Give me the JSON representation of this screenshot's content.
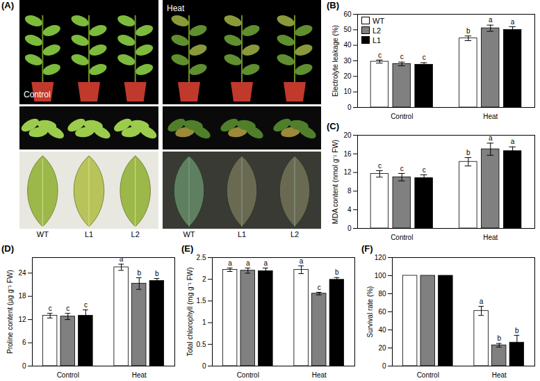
{
  "photo_panel": {
    "title": "(A)",
    "conditions": [
      "Control",
      "Heat"
    ],
    "lines": [
      "WT",
      "L1",
      "L2"
    ]
  },
  "chart_data": [
    {
      "type": "bar",
      "title": "(B)",
      "ylabel": "Electrolyte leakage (%)",
      "categories": [
        "Control",
        "Heat"
      ],
      "ylim": [
        0,
        60
      ],
      "yticks": [
        0,
        10,
        20,
        30,
        40,
        50,
        60
      ],
      "legend": "top-left",
      "series": [
        {
          "name": "WT",
          "color": "#ffffff",
          "values": [
            29.5,
            44.5
          ],
          "errors": [
            1.0,
            1.5
          ],
          "annotations": [
            "c",
            "b"
          ]
        },
        {
          "name": "L2",
          "color": "#808080",
          "values": [
            28.0,
            51.0
          ],
          "errors": [
            1.2,
            2.0
          ],
          "annotations": [
            "c",
            "a"
          ]
        },
        {
          "name": "L1",
          "color": "#000000",
          "values": [
            27.5,
            50.0
          ],
          "errors": [
            1.3,
            2.0
          ],
          "annotations": [
            "c",
            "a"
          ]
        }
      ]
    },
    {
      "type": "bar",
      "title": "(C)",
      "ylabel": "MDA content (nmol g⁻¹ FW)",
      "categories": [
        "Control",
        "Heat"
      ],
      "ylim": [
        0,
        20
      ],
      "yticks": [
        0,
        4,
        8,
        12,
        16,
        20
      ],
      "series": [
        {
          "name": "WT",
          "color": "#ffffff",
          "values": [
            11.7,
            14.3
          ],
          "errors": [
            0.7,
            0.9
          ],
          "annotations": [
            "c",
            "b"
          ]
        },
        {
          "name": "L2",
          "color": "#808080",
          "values": [
            11.0,
            17.0
          ],
          "errors": [
            0.8,
            1.3
          ],
          "annotations": [
            "c",
            "a"
          ]
        },
        {
          "name": "L1",
          "color": "#000000",
          "values": [
            10.8,
            16.6
          ],
          "errors": [
            0.7,
            0.9
          ],
          "annotations": [
            "c",
            "a"
          ]
        }
      ]
    },
    {
      "type": "bar",
      "title": "(D)",
      "ylabel": "Proline content (µg g⁻¹ FW)",
      "categories": [
        "Control",
        "Heat"
      ],
      "ylim": [
        0,
        28
      ],
      "yticks": [
        0,
        6,
        12,
        18,
        24
      ],
      "series": [
        {
          "name": "WT",
          "color": "#ffffff",
          "values": [
            13.0,
            25.5
          ],
          "errors": [
            0.6,
            0.8
          ],
          "annotations": [
            "c",
            "a"
          ]
        },
        {
          "name": "L2",
          "color": "#808080",
          "values": [
            12.8,
            21.3
          ],
          "errors": [
            0.8,
            1.5
          ],
          "annotations": [
            "c",
            "b"
          ]
        },
        {
          "name": "L1",
          "color": "#000000",
          "values": [
            13.0,
            22.0
          ],
          "errors": [
            1.5,
            0.6
          ],
          "annotations": [
            "c",
            "b"
          ]
        }
      ]
    },
    {
      "type": "bar",
      "title": "(E)",
      "ylabel": "Total chlorophyll (mg g⁻¹ FW)",
      "categories": [
        "Control",
        "Heat"
      ],
      "ylim": [
        0,
        2.5
      ],
      "yticks": [
        0,
        0.5,
        1,
        1.5,
        2,
        2.5
      ],
      "series": [
        {
          "name": "WT",
          "color": "#ffffff",
          "values": [
            2.22,
            2.22
          ],
          "errors": [
            0.04,
            0.09
          ],
          "annotations": [
            "a",
            "a"
          ]
        },
        {
          "name": "L2",
          "color": "#808080",
          "values": [
            2.2,
            1.67
          ],
          "errors": [
            0.06,
            0.03
          ],
          "annotations": [
            "a",
            "c"
          ]
        },
        {
          "name": "L1",
          "color": "#000000",
          "values": [
            2.19,
            1.99
          ],
          "errors": [
            0.07,
            0.05
          ],
          "annotations": [
            "a",
            "b"
          ]
        }
      ]
    },
    {
      "type": "bar",
      "title": "(F)",
      "ylabel": "Survival rate (%)",
      "categories": [
        "Control",
        "Heat"
      ],
      "ylim": [
        0,
        120
      ],
      "yticks": [
        0,
        20,
        40,
        60,
        80,
        100,
        120
      ],
      "series": [
        {
          "name": "WT",
          "color": "#ffffff",
          "values": [
            100,
            61
          ],
          "errors": [
            null,
            5
          ],
          "annotations": [
            null,
            "a"
          ]
        },
        {
          "name": "L2",
          "color": "#808080",
          "values": [
            100,
            23
          ],
          "errors": [
            null,
            2
          ],
          "annotations": [
            null,
            "b"
          ]
        },
        {
          "name": "L1",
          "color": "#000000",
          "values": [
            100,
            26
          ],
          "errors": [
            null,
            8
          ],
          "annotations": [
            null,
            "b"
          ]
        }
      ]
    }
  ]
}
